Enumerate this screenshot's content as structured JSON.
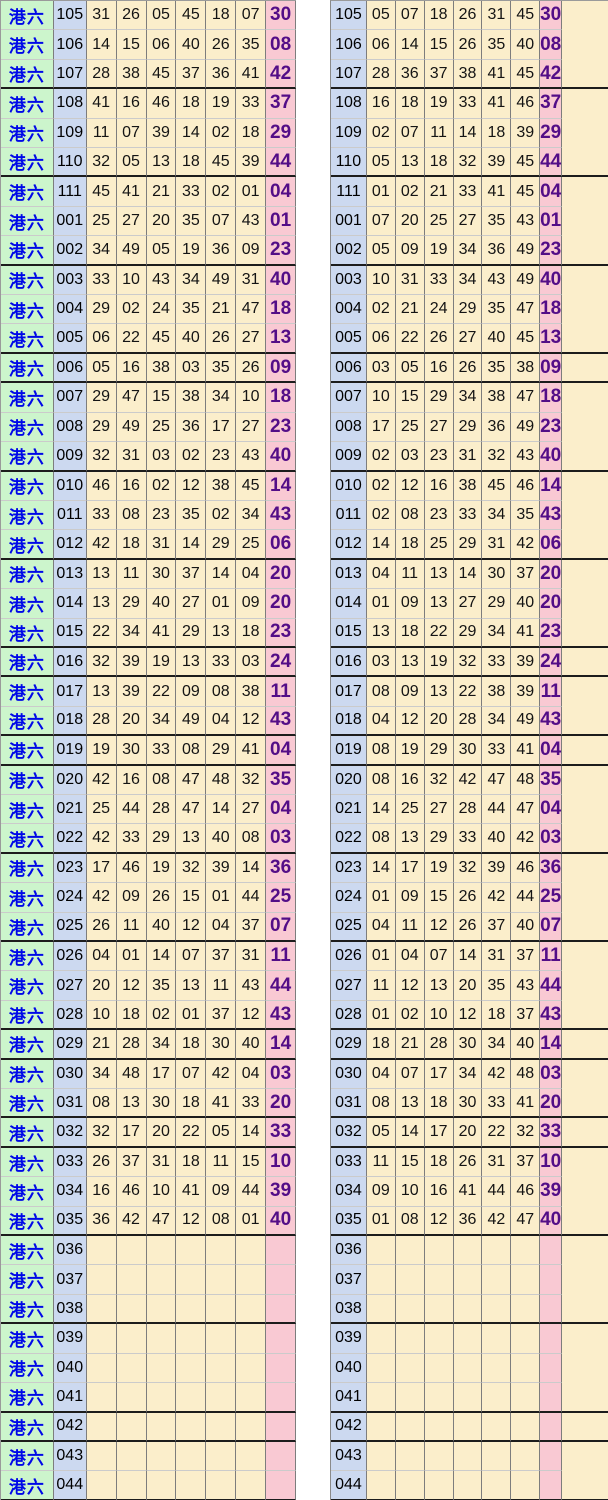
{
  "row_label": "港六",
  "colors": {
    "green": "#ccf5cc",
    "blue": "#ccd9f0",
    "yellow": "#fbeecb",
    "pink": "#f9c9d3",
    "purple": "#530d87",
    "labelcol": "#0008e8"
  },
  "rows": [
    {
      "issue": "105",
      "nums": [
        "31",
        "26",
        "05",
        "45",
        "18",
        "07"
      ],
      "sorted": [
        "05",
        "07",
        "18",
        "26",
        "31",
        "45"
      ],
      "special": "30",
      "group_end": false
    },
    {
      "issue": "106",
      "nums": [
        "14",
        "15",
        "06",
        "40",
        "26",
        "35"
      ],
      "sorted": [
        "06",
        "14",
        "15",
        "26",
        "35",
        "40"
      ],
      "special": "08",
      "group_end": false
    },
    {
      "issue": "107",
      "nums": [
        "28",
        "38",
        "45",
        "37",
        "36",
        "41"
      ],
      "sorted": [
        "28",
        "36",
        "37",
        "38",
        "41",
        "45"
      ],
      "special": "42",
      "group_end": true
    },
    {
      "issue": "108",
      "nums": [
        "41",
        "16",
        "46",
        "18",
        "19",
        "33"
      ],
      "sorted": [
        "16",
        "18",
        "19",
        "33",
        "41",
        "46"
      ],
      "special": "37",
      "group_end": false
    },
    {
      "issue": "109",
      "nums": [
        "11",
        "07",
        "39",
        "14",
        "02",
        "18"
      ],
      "sorted": [
        "02",
        "07",
        "11",
        "14",
        "18",
        "39"
      ],
      "special": "29",
      "group_end": false
    },
    {
      "issue": "110",
      "nums": [
        "32",
        "05",
        "13",
        "18",
        "45",
        "39"
      ],
      "sorted": [
        "05",
        "13",
        "18",
        "32",
        "39",
        "45"
      ],
      "special": "44",
      "group_end": true
    },
    {
      "issue": "111",
      "nums": [
        "45",
        "41",
        "21",
        "33",
        "02",
        "01"
      ],
      "sorted": [
        "01",
        "02",
        "21",
        "33",
        "41",
        "45"
      ],
      "special": "04",
      "group_end": false
    },
    {
      "issue": "001",
      "nums": [
        "25",
        "27",
        "20",
        "35",
        "07",
        "43"
      ],
      "sorted": [
        "07",
        "20",
        "25",
        "27",
        "35",
        "43"
      ],
      "special": "01",
      "group_end": false
    },
    {
      "issue": "002",
      "nums": [
        "34",
        "49",
        "05",
        "19",
        "36",
        "09"
      ],
      "sorted": [
        "05",
        "09",
        "19",
        "34",
        "36",
        "49"
      ],
      "special": "23",
      "group_end": true
    },
    {
      "issue": "003",
      "nums": [
        "33",
        "10",
        "43",
        "34",
        "49",
        "31"
      ],
      "sorted": [
        "10",
        "31",
        "33",
        "34",
        "43",
        "49"
      ],
      "special": "40",
      "group_end": false
    },
    {
      "issue": "004",
      "nums": [
        "29",
        "02",
        "24",
        "35",
        "21",
        "47"
      ],
      "sorted": [
        "02",
        "21",
        "24",
        "29",
        "35",
        "47"
      ],
      "special": "18",
      "group_end": false
    },
    {
      "issue": "005",
      "nums": [
        "06",
        "22",
        "45",
        "40",
        "26",
        "27"
      ],
      "sorted": [
        "06",
        "22",
        "26",
        "27",
        "40",
        "45"
      ],
      "special": "13",
      "group_end": true
    },
    {
      "issue": "006",
      "nums": [
        "05",
        "16",
        "38",
        "03",
        "35",
        "26"
      ],
      "sorted": [
        "03",
        "05",
        "16",
        "26",
        "35",
        "38"
      ],
      "special": "09",
      "group_end": true
    },
    {
      "issue": "007",
      "nums": [
        "29",
        "47",
        "15",
        "38",
        "34",
        "10"
      ],
      "sorted": [
        "10",
        "15",
        "29",
        "34",
        "38",
        "47"
      ],
      "special": "18",
      "group_end": false
    },
    {
      "issue": "008",
      "nums": [
        "29",
        "49",
        "25",
        "36",
        "17",
        "27"
      ],
      "sorted": [
        "17",
        "25",
        "27",
        "29",
        "36",
        "49"
      ],
      "special": "23",
      "group_end": false
    },
    {
      "issue": "009",
      "nums": [
        "32",
        "31",
        "03",
        "02",
        "23",
        "43"
      ],
      "sorted": [
        "02",
        "03",
        "23",
        "31",
        "32",
        "43"
      ],
      "special": "40",
      "group_end": true
    },
    {
      "issue": "010",
      "nums": [
        "46",
        "16",
        "02",
        "12",
        "38",
        "45"
      ],
      "sorted": [
        "02",
        "12",
        "16",
        "38",
        "45",
        "46"
      ],
      "special": "14",
      "group_end": false
    },
    {
      "issue": "011",
      "nums": [
        "33",
        "08",
        "23",
        "35",
        "02",
        "34"
      ],
      "sorted": [
        "02",
        "08",
        "23",
        "33",
        "34",
        "35"
      ],
      "special": "43",
      "group_end": false
    },
    {
      "issue": "012",
      "nums": [
        "42",
        "18",
        "31",
        "14",
        "29",
        "25"
      ],
      "sorted": [
        "14",
        "18",
        "25",
        "29",
        "31",
        "42"
      ],
      "special": "06",
      "group_end": true
    },
    {
      "issue": "013",
      "nums": [
        "13",
        "11",
        "30",
        "37",
        "14",
        "04"
      ],
      "sorted": [
        "04",
        "11",
        "13",
        "14",
        "30",
        "37"
      ],
      "special": "20",
      "group_end": false
    },
    {
      "issue": "014",
      "nums": [
        "13",
        "29",
        "40",
        "27",
        "01",
        "09"
      ],
      "sorted": [
        "01",
        "09",
        "13",
        "27",
        "29",
        "40"
      ],
      "special": "20",
      "group_end": false
    },
    {
      "issue": "015",
      "nums": [
        "22",
        "34",
        "41",
        "29",
        "13",
        "18"
      ],
      "sorted": [
        "13",
        "18",
        "22",
        "29",
        "34",
        "41"
      ],
      "special": "23",
      "group_end": true
    },
    {
      "issue": "016",
      "nums": [
        "32",
        "39",
        "19",
        "13",
        "33",
        "03"
      ],
      "sorted": [
        "03",
        "13",
        "19",
        "32",
        "33",
        "39"
      ],
      "special": "24",
      "group_end": true
    },
    {
      "issue": "017",
      "nums": [
        "13",
        "39",
        "22",
        "09",
        "08",
        "38"
      ],
      "sorted": [
        "08",
        "09",
        "13",
        "22",
        "38",
        "39"
      ],
      "special": "11",
      "group_end": false
    },
    {
      "issue": "018",
      "nums": [
        "28",
        "20",
        "34",
        "49",
        "04",
        "12"
      ],
      "sorted": [
        "04",
        "12",
        "20",
        "28",
        "34",
        "49"
      ],
      "special": "43",
      "group_end": true
    },
    {
      "issue": "019",
      "nums": [
        "19",
        "30",
        "33",
        "08",
        "29",
        "41"
      ],
      "sorted": [
        "08",
        "19",
        "29",
        "30",
        "33",
        "41"
      ],
      "special": "04",
      "group_end": true
    },
    {
      "issue": "020",
      "nums": [
        "42",
        "16",
        "08",
        "47",
        "48",
        "32"
      ],
      "sorted": [
        "08",
        "16",
        "32",
        "42",
        "47",
        "48"
      ],
      "special": "35",
      "group_end": false
    },
    {
      "issue": "021",
      "nums": [
        "25",
        "44",
        "28",
        "47",
        "14",
        "27"
      ],
      "sorted": [
        "14",
        "25",
        "27",
        "28",
        "44",
        "47"
      ],
      "special": "04",
      "group_end": false
    },
    {
      "issue": "022",
      "nums": [
        "42",
        "33",
        "29",
        "13",
        "40",
        "08"
      ],
      "sorted": [
        "08",
        "13",
        "29",
        "33",
        "40",
        "42"
      ],
      "special": "03",
      "group_end": true
    },
    {
      "issue": "023",
      "nums": [
        "17",
        "46",
        "19",
        "32",
        "39",
        "14"
      ],
      "sorted": [
        "14",
        "17",
        "19",
        "32",
        "39",
        "46"
      ],
      "special": "36",
      "group_end": false
    },
    {
      "issue": "024",
      "nums": [
        "42",
        "09",
        "26",
        "15",
        "01",
        "44"
      ],
      "sorted": [
        "01",
        "09",
        "15",
        "26",
        "42",
        "44"
      ],
      "special": "25",
      "group_end": false
    },
    {
      "issue": "025",
      "nums": [
        "26",
        "11",
        "40",
        "12",
        "04",
        "37"
      ],
      "sorted": [
        "04",
        "11",
        "12",
        "26",
        "37",
        "40"
      ],
      "special": "07",
      "group_end": true
    },
    {
      "issue": "026",
      "nums": [
        "04",
        "01",
        "14",
        "07",
        "37",
        "31"
      ],
      "sorted": [
        "01",
        "04",
        "07",
        "14",
        "31",
        "37"
      ],
      "special": "11",
      "group_end": false
    },
    {
      "issue": "027",
      "nums": [
        "20",
        "12",
        "35",
        "13",
        "11",
        "43"
      ],
      "sorted": [
        "11",
        "12",
        "13",
        "20",
        "35",
        "43"
      ],
      "special": "44",
      "group_end": false
    },
    {
      "issue": "028",
      "nums": [
        "10",
        "18",
        "02",
        "01",
        "37",
        "12"
      ],
      "sorted": [
        "01",
        "02",
        "10",
        "12",
        "18",
        "37"
      ],
      "special": "43",
      "group_end": true
    },
    {
      "issue": "029",
      "nums": [
        "21",
        "28",
        "34",
        "18",
        "30",
        "40"
      ],
      "sorted": [
        "18",
        "21",
        "28",
        "30",
        "34",
        "40"
      ],
      "special": "14",
      "group_end": true
    },
    {
      "issue": "030",
      "nums": [
        "34",
        "48",
        "17",
        "07",
        "42",
        "04"
      ],
      "sorted": [
        "04",
        "07",
        "17",
        "34",
        "42",
        "48"
      ],
      "special": "03",
      "group_end": false
    },
    {
      "issue": "031",
      "nums": [
        "08",
        "13",
        "30",
        "18",
        "41",
        "33"
      ],
      "sorted": [
        "08",
        "13",
        "18",
        "30",
        "33",
        "41"
      ],
      "special": "20",
      "group_end": true
    },
    {
      "issue": "032",
      "nums": [
        "32",
        "17",
        "20",
        "22",
        "05",
        "14"
      ],
      "sorted": [
        "05",
        "14",
        "17",
        "20",
        "22",
        "32"
      ],
      "special": "33",
      "group_end": true
    },
    {
      "issue": "033",
      "nums": [
        "26",
        "37",
        "31",
        "18",
        "11",
        "15"
      ],
      "sorted": [
        "11",
        "15",
        "18",
        "26",
        "31",
        "37"
      ],
      "special": "10",
      "group_end": false
    },
    {
      "issue": "034",
      "nums": [
        "16",
        "46",
        "10",
        "41",
        "09",
        "44"
      ],
      "sorted": [
        "09",
        "10",
        "16",
        "41",
        "44",
        "46"
      ],
      "special": "39",
      "group_end": false
    },
    {
      "issue": "035",
      "nums": [
        "36",
        "42",
        "47",
        "12",
        "08",
        "01"
      ],
      "sorted": [
        "01",
        "08",
        "12",
        "36",
        "42",
        "47"
      ],
      "special": "40",
      "group_end": true
    },
    {
      "issue": "036",
      "nums": [
        "",
        "",
        "",
        "",
        "",
        ""
      ],
      "sorted": [
        "",
        "",
        "",
        "",
        "",
        ""
      ],
      "special": "",
      "group_end": false
    },
    {
      "issue": "037",
      "nums": [
        "",
        "",
        "",
        "",
        "",
        ""
      ],
      "sorted": [
        "",
        "",
        "",
        "",
        "",
        ""
      ],
      "special": "",
      "group_end": false
    },
    {
      "issue": "038",
      "nums": [
        "",
        "",
        "",
        "",
        "",
        ""
      ],
      "sorted": [
        "",
        "",
        "",
        "",
        "",
        ""
      ],
      "special": "",
      "group_end": true
    },
    {
      "issue": "039",
      "nums": [
        "",
        "",
        "",
        "",
        "",
        ""
      ],
      "sorted": [
        "",
        "",
        "",
        "",
        "",
        ""
      ],
      "special": "",
      "group_end": false
    },
    {
      "issue": "040",
      "nums": [
        "",
        "",
        "",
        "",
        "",
        ""
      ],
      "sorted": [
        "",
        "",
        "",
        "",
        "",
        ""
      ],
      "special": "",
      "group_end": false
    },
    {
      "issue": "041",
      "nums": [
        "",
        "",
        "",
        "",
        "",
        ""
      ],
      "sorted": [
        "",
        "",
        "",
        "",
        "",
        ""
      ],
      "special": "",
      "group_end": true
    },
    {
      "issue": "042",
      "nums": [
        "",
        "",
        "",
        "",
        "",
        ""
      ],
      "sorted": [
        "",
        "",
        "",
        "",
        "",
        ""
      ],
      "special": "",
      "group_end": true
    },
    {
      "issue": "043",
      "nums": [
        "",
        "",
        "",
        "",
        "",
        ""
      ],
      "sorted": [
        "",
        "",
        "",
        "",
        "",
        ""
      ],
      "special": "",
      "group_end": false
    },
    {
      "issue": "044",
      "nums": [
        "",
        "",
        "",
        "",
        "",
        ""
      ],
      "sorted": [
        "",
        "",
        "",
        "",
        "",
        ""
      ],
      "special": "",
      "group_end": true
    }
  ]
}
